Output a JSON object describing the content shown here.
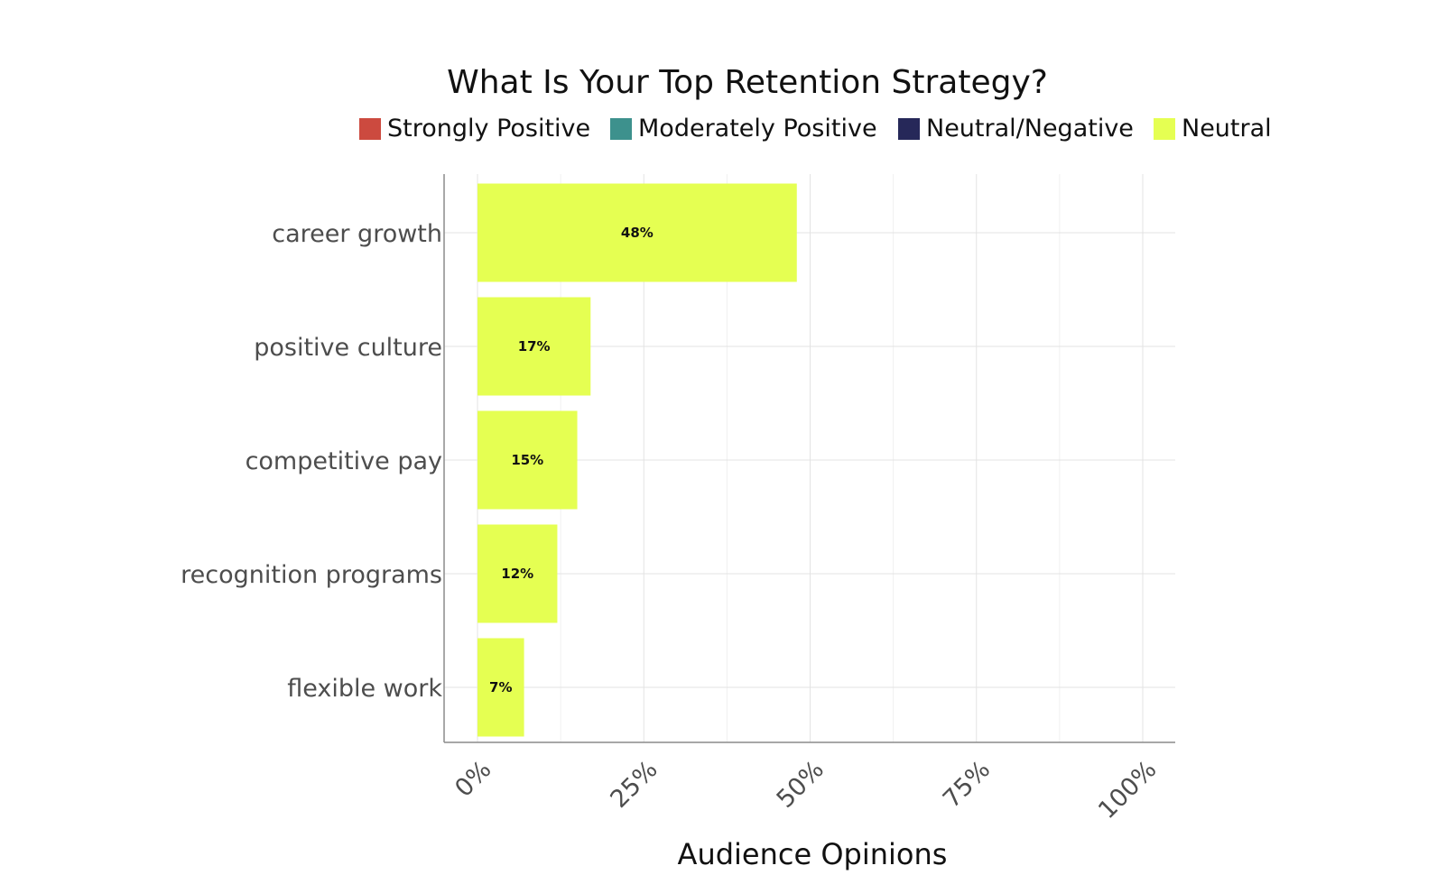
{
  "chart_data": {
    "type": "bar",
    "orientation": "horizontal",
    "title": "What Is Your Top Retention Strategy?",
    "xlabel": "Audience Opinions",
    "ylabel": "",
    "xlim": [
      0,
      105
    ],
    "x_ticks": [
      0,
      25,
      50,
      75,
      100
    ],
    "x_tick_labels": [
      "0%",
      "25%",
      "50%",
      "75%",
      "100%"
    ],
    "grid": true,
    "legend_position": "top",
    "legend": [
      {
        "label": "Strongly Positive",
        "color": "#cc4a3f"
      },
      {
        "label": "Moderately Positive",
        "color": "#3d918d"
      },
      {
        "label": "Neutral/Negative",
        "color": "#262859"
      },
      {
        "label": "Neutral",
        "color": "#e5ff52"
      }
    ],
    "categories": [
      "career growth",
      "positive culture",
      "competitive pay",
      "recognition programs",
      "flexible work"
    ],
    "values": [
      48,
      17,
      15,
      12,
      7
    ],
    "value_labels": [
      "48%",
      "17%",
      "15%",
      "12%",
      "7%"
    ],
    "bar_color": "#e5ff52"
  }
}
